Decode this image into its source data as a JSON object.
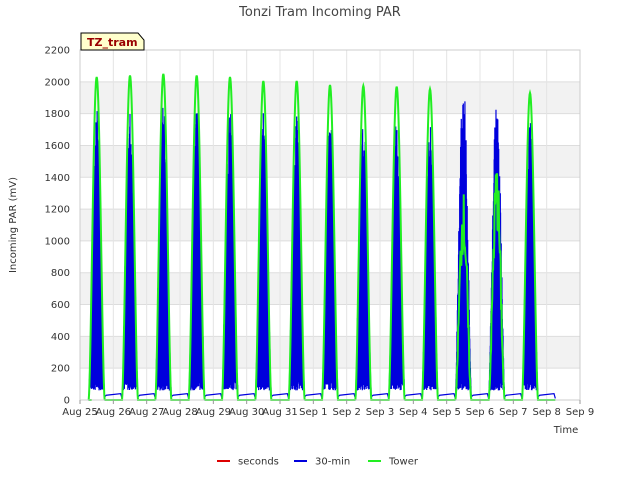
{
  "chart_data": {
    "type": "line",
    "title": "Tonzi Tram Incoming PAR",
    "xlabel": "Time",
    "ylabel": "Incoming PAR (mV)",
    "ylim": [
      0,
      2200
    ],
    "yticks": [
      0,
      200,
      400,
      600,
      800,
      1000,
      1200,
      1400,
      1600,
      1800,
      2000,
      2200
    ],
    "xlim": [
      0,
      15
    ],
    "xticks": [
      {
        "v": 0,
        "label": "Aug 25"
      },
      {
        "v": 1,
        "label": "Aug 26"
      },
      {
        "v": 2,
        "label": "Aug 27"
      },
      {
        "v": 3,
        "label": "Aug 28"
      },
      {
        "v": 4,
        "label": "Aug 29"
      },
      {
        "v": 5,
        "label": "Aug 30"
      },
      {
        "v": 6,
        "label": "Aug 31"
      },
      {
        "v": 7,
        "label": "Sep 1"
      },
      {
        "v": 8,
        "label": "Sep 2"
      },
      {
        "v": 9,
        "label": "Sep 3"
      },
      {
        "v": 10,
        "label": "Sep 4"
      },
      {
        "v": 11,
        "label": "Sep 5"
      },
      {
        "v": 12,
        "label": "Sep 6"
      },
      {
        "v": 13,
        "label": "Sep 7"
      },
      {
        "v": 14,
        "label": "Sep 8"
      },
      {
        "v": 15,
        "label": "Sep 9"
      }
    ],
    "grid": true,
    "legend_placement": "bottom",
    "badge": "TZ_tram",
    "days": [
      0.5,
      1.5,
      2.5,
      3.5,
      4.5,
      5.5,
      6.5,
      7.5,
      8.5,
      9.5,
      10.5,
      11.5,
      12.5,
      13.5,
      14.5
    ],
    "series": [
      {
        "name": "seconds",
        "color": "#dd0000",
        "peaks": []
      },
      {
        "name": "30-min",
        "color": "#0000dd",
        "peaks": [
          1840,
          1840,
          1870,
          1860,
          1855,
          1830,
          1830,
          1810,
          1810,
          1790,
          1780,
          2010,
          1920,
          1760
        ]
      },
      {
        "name": "Tower",
        "color": "#22ee22",
        "peaks": [
          2030,
          2040,
          2050,
          2040,
          2030,
          2005,
          2005,
          1980,
          1975,
          1970,
          1955,
          1320,
          1520,
          1930
        ]
      }
    ]
  }
}
